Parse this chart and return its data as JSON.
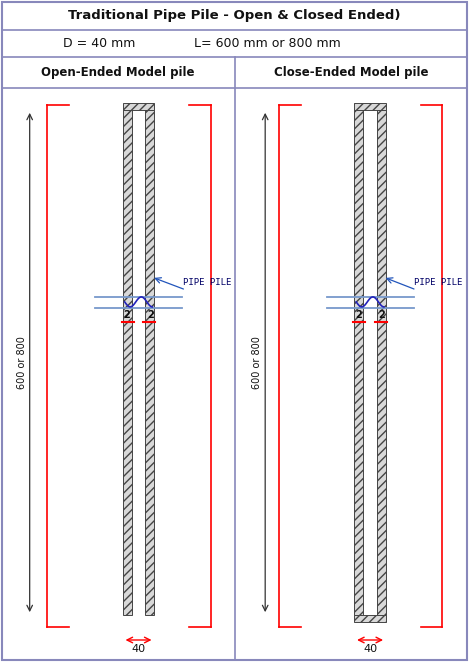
{
  "title": "Traditional Pipe Pile - Open & Closed Ended)",
  "subtitle": "D = 40 mm      L= 600 mm or 800 mm",
  "left_label": "Open-Ended Model pile",
  "right_label": "Close-Ended Model pile",
  "border_color": "#8888bb",
  "text_color": "#111111",
  "dim_40_label": "40",
  "dim_600_label": "600 or 800",
  "pipe_pile_label": "PIPE PILE",
  "fig_width": 4.74,
  "fig_height": 6.62,
  "dpi": 100
}
